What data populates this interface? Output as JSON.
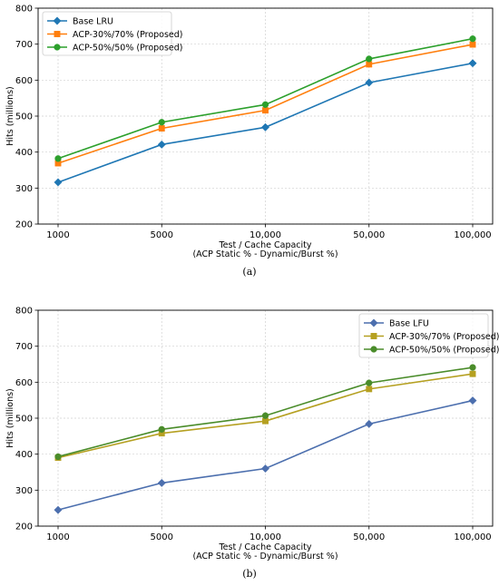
{
  "chart_data": [
    {
      "panel_label": "(a)",
      "type": "line",
      "categories": [
        "1000",
        "5000",
        "10,000",
        "50,000",
        "100,000"
      ],
      "xlabel_line1": "Test / Cache Capacity",
      "xlabel_line2": "(ACP Static % - Dynamic/Burst %)",
      "ylabel": "Hits (millions)",
      "ylim": [
        200,
        800
      ],
      "yticks": [
        200,
        300,
        400,
        500,
        600,
        700,
        800
      ],
      "grid": true,
      "legend_position": "top-left",
      "series": [
        {
          "name": "Base LRU",
          "values": [
            316,
            421,
            469,
            593,
            647
          ],
          "color": "#1f77b4",
          "marker": "diamond"
        },
        {
          "name": "ACP-30%/70% (Proposed)",
          "values": [
            369,
            466,
            516,
            644,
            699
          ],
          "color": "#ff7f0e",
          "marker": "square"
        },
        {
          "name": "ACP-50%/50% (Proposed)",
          "values": [
            382,
            483,
            532,
            659,
            715
          ],
          "color": "#2ca02c",
          "marker": "circle"
        }
      ]
    },
    {
      "panel_label": "(b)",
      "type": "line",
      "categories": [
        "1000",
        "5000",
        "10,000",
        "50,000",
        "100,000"
      ],
      "xlabel_line1": "Test / Cache Capacity",
      "xlabel_line2": "(ACP Static % - Dynamic/Burst %)",
      "ylabel": "Hits (millions)",
      "ylim": [
        200,
        800
      ],
      "yticks": [
        200,
        300,
        400,
        500,
        600,
        700,
        800
      ],
      "grid": true,
      "legend_position": "top-right",
      "series": [
        {
          "name": "Base LFU",
          "values": [
            245,
            320,
            360,
            484,
            549
          ],
          "color": "#4c6fae",
          "marker": "diamond"
        },
        {
          "name": "ACP-30%/70% (Proposed)",
          "values": [
            390,
            458,
            492,
            581,
            623
          ],
          "color": "#b5a021",
          "marker": "square"
        },
        {
          "name": "ACP-50%/50% (Proposed)",
          "values": [
            393,
            469,
            507,
            598,
            641
          ],
          "color": "#4a8c2a",
          "marker": "circle"
        }
      ]
    }
  ]
}
